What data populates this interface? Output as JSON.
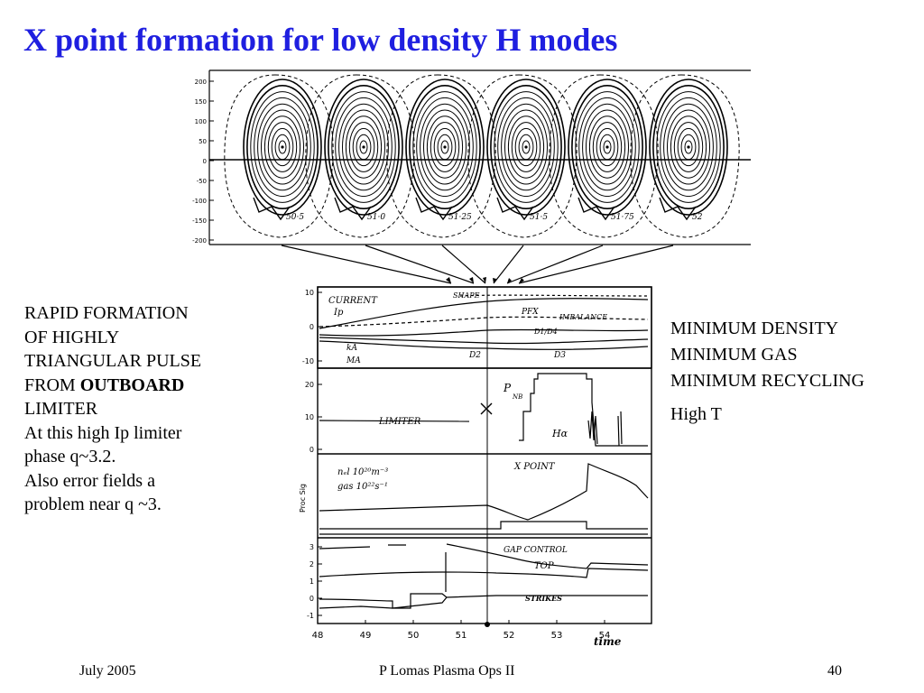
{
  "slide": {
    "title": "X point formation for low density H modes"
  },
  "left_text": {
    "lines": [
      "RAPID FORMATION",
      "OF HIGHLY",
      "TRIANGULAR PULSE"
    ],
    "from_prefix": "FROM ",
    "from_bold": "OUTBOARD",
    "lines_after": [
      "LIMITER",
      "At this high Ip limiter",
      "phase q~3.2.",
      "Also error fields a",
      "problem near q ~3."
    ]
  },
  "right_text": {
    "lines": [
      "MINIMUM DENSITY",
      "MINIMUM GAS",
      "MINIMUM RECYCLING"
    ],
    "extra": "High T"
  },
  "flux_panel": {
    "y_ticks": [
      "200",
      "150",
      "100",
      "50",
      "0",
      "-50",
      "-100",
      "-150",
      "-200"
    ],
    "equilibria": [
      {
        "label": "50·5"
      },
      {
        "label": "51·0"
      },
      {
        "label": "51·25"
      },
      {
        "label": "51·5"
      },
      {
        "label": "51·75"
      },
      {
        "label": "52"
      }
    ]
  },
  "trace_panel": {
    "x_ticks": [
      "48",
      "49",
      "50",
      "51",
      "52",
      "53",
      "54"
    ],
    "x_label": "time",
    "panel1": {
      "y_ticks": [
        "10",
        "0",
        "-10"
      ],
      "labels": [
        "CURRENT",
        "Ip",
        "SHAPE",
        "PFX",
        "IMBALANCE",
        "D1/D4",
        "kA",
        "MA",
        "D2",
        "D3"
      ]
    },
    "panel2": {
      "y_ticks": [
        "20",
        "10",
        "0"
      ],
      "labels": [
        "LIMITER",
        "P",
        "NB",
        "Hα"
      ]
    },
    "panel3": {
      "y_label": "Proc Sig",
      "labels": [
        "nₑl  10²⁰m⁻³",
        "gas  10²²s⁻¹",
        "X POINT"
      ]
    },
    "panel4": {
      "y_ticks": [
        "3",
        "2",
        "1",
        "0",
        "-1"
      ],
      "labels": [
        "GAP CONTROL",
        "TOP",
        "STRIKES"
      ]
    }
  },
  "footer": {
    "date": "July 2005",
    "center": "P Lomas  Plasma Ops II",
    "page": "40"
  }
}
